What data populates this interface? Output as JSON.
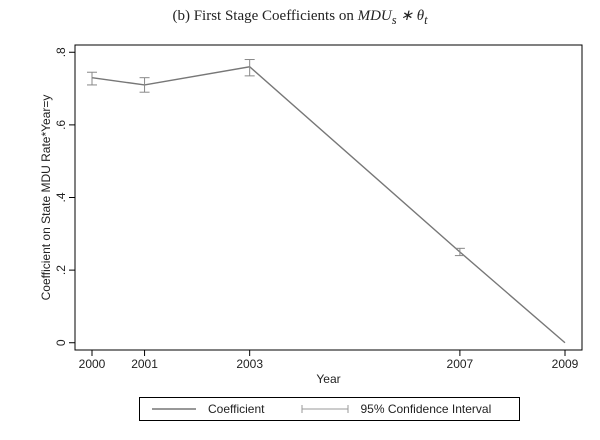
{
  "chart_data": {
    "type": "line",
    "title_prefix": "(b) First Stage Coefficients on",
    "title_math": "MDU",
    "title_math_sub": "s",
    "title_math_op": " ∗ θ",
    "title_math_sub2": "t",
    "xlabel": "Year",
    "ylabel": "Coefficient on State MDU Rate*Year=y",
    "x": [
      2000,
      2001,
      2003,
      2007,
      2009
    ],
    "xlim": [
      2000,
      2009
    ],
    "ylim": [
      -0.02,
      0.82
    ],
    "yticks": [
      0,
      0.2,
      0.4,
      0.6,
      0.8
    ],
    "ytick_labels": [
      "0",
      ".2",
      ".4",
      ".6",
      ".8"
    ],
    "xtick_labels": [
      "2000",
      "2001",
      "2003",
      "2007",
      "2009"
    ],
    "series": [
      {
        "name": "Coefficient",
        "values": [
          0.73,
          0.71,
          0.76,
          0.25,
          0.0
        ],
        "ci_low": [
          0.71,
          0.69,
          0.735,
          0.24,
          0.0
        ],
        "ci_high": [
          0.745,
          0.73,
          0.78,
          0.26,
          0.0
        ]
      }
    ],
    "legend": {
      "position": "bottom",
      "entries": [
        "Coefficient",
        "95% Confidence Interval"
      ]
    },
    "grid": false,
    "colors": {
      "line": "#777777",
      "ci": "#888888",
      "axis": "#000000"
    }
  }
}
